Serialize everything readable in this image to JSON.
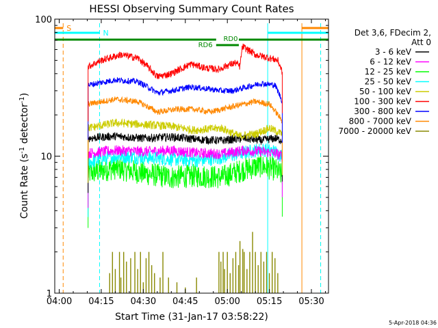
{
  "chart_data": {
    "type": "line",
    "title": "HESSI Observing Summary Count Rates",
    "xlabel": "Start Time (31-Jan-17 03:58:22)",
    "ylabel_main": "Count Rate (s",
    "ylabel_sup1": "-1",
    "ylabel_mid": " detector",
    "ylabel_sup2": "-1",
    "ylabel_end": ")",
    "x_unit": "minutes after 04:00 UT",
    "xlim": [
      -1.6,
      96.1
    ],
    "ylim": [
      1,
      100
    ],
    "y_scale": "log",
    "x_ticks": [
      {
        "value": 0,
        "label": "04:00"
      },
      {
        "value": 15,
        "label": "04:15"
      },
      {
        "value": 30,
        "label": "04:30"
      },
      {
        "value": 45,
        "label": "04:45"
      },
      {
        "value": 60,
        "label": "05:00"
      },
      {
        "value": 75,
        "label": "05:15"
      },
      {
        "value": 90,
        "label": "05:30"
      }
    ],
    "y_ticks": [
      {
        "value": 1,
        "label": "1"
      },
      {
        "value": 10,
        "label": "10"
      },
      {
        "value": 100,
        "label": "100"
      }
    ],
    "legend": {
      "position": "right",
      "header": [
        "Det 3,6, FDecim 2,",
        "Att 0"
      ],
      "entries": [
        {
          "label": "3 - 6 keV",
          "color": "#000000"
        },
        {
          "label": "6 - 12 keV",
          "color": "#ff00ff"
        },
        {
          "label": "12 - 25 keV",
          "color": "#00ff00"
        },
        {
          "label": "25 - 50 keV",
          "color": "#00ffff"
        },
        {
          "label": "50 - 100 keV",
          "color": "#cccc00"
        },
        {
          "label": "100 - 300 keV",
          "color": "#ff0000"
        },
        {
          "label": "300 - 800 keV",
          "color": "#0000ff"
        },
        {
          "label": "800 - 7000 keV",
          "color": "#ff8800"
        },
        {
          "label": "7000 - 20000 keV",
          "color": "#888800"
        }
      ]
    },
    "data_interval": [
      10.3,
      79.6
    ],
    "series": [
      {
        "name": "3 - 6 keV",
        "color": "#000000",
        "noise": 0.07,
        "points": [
          [
            10.3,
            13.5
          ],
          [
            20,
            14
          ],
          [
            30,
            13.5
          ],
          [
            40,
            13.8
          ],
          [
            50,
            13.2
          ],
          [
            58,
            13
          ],
          [
            66,
            13.5
          ],
          [
            72,
            13
          ],
          [
            77,
            13.5
          ],
          [
            79.6,
            13
          ]
        ]
      },
      {
        "name": "6 - 12 keV",
        "color": "#ff00ff",
        "noise": 0.09,
        "points": [
          [
            10.3,
            10.5
          ],
          [
            20,
            11
          ],
          [
            30,
            10.8
          ],
          [
            40,
            11
          ],
          [
            50,
            10.5
          ],
          [
            58,
            10.4
          ],
          [
            66,
            11
          ],
          [
            72,
            10.8
          ],
          [
            77,
            10.5
          ],
          [
            79.6,
            10
          ]
        ]
      },
      {
        "name": "12 - 25 keV",
        "color": "#00ff00",
        "noise": 0.2,
        "points": [
          [
            10.3,
            7.5
          ],
          [
            20,
            8.2
          ],
          [
            30,
            7.5
          ],
          [
            40,
            7
          ],
          [
            48,
            7.2
          ],
          [
            58,
            7
          ],
          [
            66,
            8
          ],
          [
            72,
            8.5
          ],
          [
            77,
            8
          ],
          [
            79.6,
            7.2
          ]
        ]
      },
      {
        "name": "25 - 50 keV",
        "color": "#00ffff",
        "noise": 0.12,
        "points": [
          [
            10.3,
            9
          ],
          [
            20,
            10
          ],
          [
            30,
            9.8
          ],
          [
            40,
            9.5
          ],
          [
            50,
            9.3
          ],
          [
            58,
            9.8
          ],
          [
            66,
            10.6
          ],
          [
            72,
            11.2
          ],
          [
            77,
            10.8
          ],
          [
            79.6,
            10
          ]
        ]
      },
      {
        "name": "50 - 100 keV",
        "color": "#cccc00",
        "noise": 0.07,
        "points": [
          [
            10.3,
            16
          ],
          [
            20,
            17.5
          ],
          [
            30,
            17
          ],
          [
            40,
            16.5
          ],
          [
            48,
            15.5
          ],
          [
            58,
            16
          ],
          [
            64,
            14
          ],
          [
            70,
            14.5
          ],
          [
            75,
            16
          ],
          [
            79.6,
            14.5
          ]
        ]
      },
      {
        "name": "100 - 300 keV",
        "color": "#ff0000",
        "noise": 0.06,
        "points": [
          [
            10.3,
            45
          ],
          [
            15,
            50
          ],
          [
            22,
            55
          ],
          [
            28,
            52
          ],
          [
            35,
            38
          ],
          [
            40,
            40
          ],
          [
            47,
            47
          ],
          [
            52,
            44
          ],
          [
            57,
            43
          ],
          [
            60,
            46
          ],
          [
            63,
            48
          ],
          [
            64.5,
            45
          ],
          [
            65.4,
            63
          ],
          [
            70,
            55
          ],
          [
            75,
            52
          ],
          [
            78,
            50
          ],
          [
            79.6,
            41
          ]
        ]
      },
      {
        "name": "300 - 800 keV",
        "color": "#0000ff",
        "noise": 0.05,
        "points": [
          [
            10.3,
            33
          ],
          [
            20,
            36
          ],
          [
            28,
            35
          ],
          [
            35,
            29
          ],
          [
            40,
            30
          ],
          [
            47,
            32
          ],
          [
            53,
            31
          ],
          [
            58,
            30
          ],
          [
            62,
            30
          ],
          [
            67,
            32
          ],
          [
            72,
            34
          ],
          [
            77,
            33
          ],
          [
            79.6,
            25
          ]
        ]
      },
      {
        "name": "800 - 7000 keV",
        "color": "#ff8800",
        "noise": 0.05,
        "points": [
          [
            10.3,
            24
          ],
          [
            20,
            26
          ],
          [
            28,
            25
          ],
          [
            35,
            21
          ],
          [
            42,
            22
          ],
          [
            48,
            22
          ],
          [
            54,
            21
          ],
          [
            58,
            22
          ],
          [
            62,
            23
          ],
          [
            66,
            24
          ],
          [
            70,
            25
          ],
          [
            75,
            24
          ],
          [
            79.6,
            18
          ]
        ]
      },
      {
        "name": "7000 - 20000 keV",
        "color": "#888800",
        "noise": 0,
        "points": [
          [
            10.3,
            1.0
          ],
          [
            79.6,
            1.0
          ]
        ],
        "spikes": [
          [
            18,
            1.4
          ],
          [
            19,
            2.0
          ],
          [
            20,
            1.5
          ],
          [
            21.5,
            2.0
          ],
          [
            22,
            1.3
          ],
          [
            23,
            2.0
          ],
          [
            24,
            1.7
          ],
          [
            25.5,
            1.8
          ],
          [
            27,
            2.0
          ],
          [
            28,
            1.5
          ],
          [
            29,
            2.0
          ],
          [
            30,
            1.2
          ],
          [
            31,
            1.8
          ],
          [
            32,
            2.0
          ],
          [
            33,
            1.6
          ],
          [
            34,
            1.4
          ],
          [
            36,
            1.3
          ],
          [
            37,
            2.0
          ],
          [
            39,
            1.3
          ],
          [
            42,
            1.2
          ],
          [
            45,
            1.1
          ],
          [
            49,
            1.3
          ],
          [
            57,
            2.0
          ],
          [
            57.7,
            1.7
          ],
          [
            58.5,
            2.0
          ],
          [
            59,
            1.5
          ],
          [
            60,
            2.0
          ],
          [
            61,
            1.4
          ],
          [
            62,
            1.8
          ],
          [
            63,
            2.0
          ],
          [
            64,
            1.6
          ],
          [
            64.5,
            2.4
          ],
          [
            65.5,
            2.1
          ],
          [
            66,
            2.0
          ],
          [
            67,
            1.5
          ],
          [
            68,
            2.0
          ],
          [
            69,
            2.8
          ],
          [
            70,
            2.0
          ],
          [
            71,
            1.6
          ],
          [
            72,
            2.0
          ],
          [
            73,
            1.7
          ],
          [
            74,
            2.0
          ],
          [
            75,
            1.4
          ],
          [
            76,
            2.0
          ],
          [
            77,
            1.8
          ],
          [
            78,
            1.4
          ]
        ]
      }
    ],
    "annotations": {
      "saa_markers": [
        {
          "label": "S",
          "color": "#ff8800",
          "x": 1.4
        },
        {
          "label": "",
          "color": "#ff8800",
          "x": 86.6
        },
        {
          "label": "",
          "color": "#ff8800",
          "x": 93.3
        }
      ],
      "night_markers": [
        {
          "label": "N",
          "color": "#00ffff",
          "x": 14.4
        },
        {
          "label": "",
          "color": "#00ffff",
          "x": 74.4
        },
        {
          "label": "",
          "color": "#00ffff",
          "x": 93.3
        }
      ],
      "saa_bars": [
        [
          -1.6,
          1.4
        ],
        [
          86.6,
          96.1
        ]
      ],
      "night_bars": [
        [
          -1.6,
          14.4
        ],
        [
          74.4,
          96.1
        ]
      ],
      "rd_bars": [
        {
          "label": "RD0",
          "x_start": -1.6,
          "x_end": 96.1,
          "label_x": 58.6,
          "gap": [
            56.0,
            64.1
          ],
          "level": "upper"
        },
        {
          "label": "RD6",
          "x_start": 56.0,
          "x_end": 64.1,
          "label_x": 49.6,
          "level": "lower"
        }
      ]
    }
  },
  "timestamp": "5-Apr-2018 04:36"
}
